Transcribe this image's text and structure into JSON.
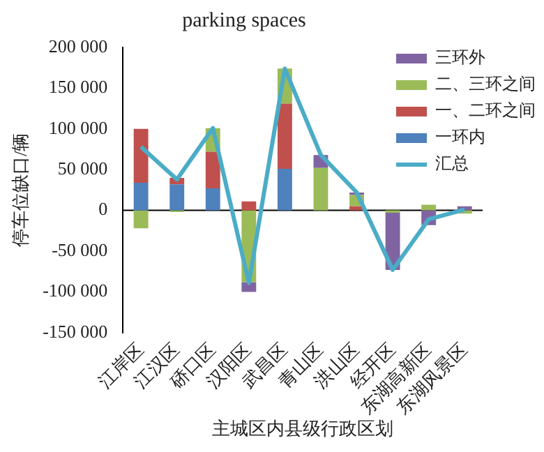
{
  "chart_data": {
    "type": "bar",
    "stacked": true,
    "title": "parking spaces",
    "xlabel": "主城区内县级行政区划",
    "ylabel": "停车位缺口/辆",
    "categories": [
      "江岸区",
      "江汉区",
      "硚口区",
      "汉阳区",
      "武昌区",
      "青山区",
      "洪山区",
      "经开区",
      "东湖高新区",
      "东湖风景区"
    ],
    "series": [
      {
        "name": "一环内",
        "color": "#4f81bd",
        "values": [
          34000,
          32000,
          27000,
          0,
          51000,
          0,
          0,
          0,
          0,
          0
        ]
      },
      {
        "name": "一、二环之间",
        "color": "#c0504d",
        "values": [
          66000,
          8000,
          45000,
          11000,
          80000,
          0,
          5000,
          0,
          0,
          0
        ]
      },
      {
        "name": "二、三环之间",
        "color": "#9bbb59",
        "values": [
          -22000,
          -2000,
          29000,
          -88000,
          43000,
          52000,
          14000,
          -3000,
          7000,
          -4000
        ]
      },
      {
        "name": "三环外",
        "color": "#8064a2",
        "values": [
          0,
          0,
          0,
          -12000,
          0,
          16000,
          3000,
          -70000,
          -18000,
          5000
        ]
      },
      {
        "name": "汇总",
        "type": "line",
        "color": "#4bacc6",
        "values": [
          78000,
          38000,
          101000,
          -89000,
          174000,
          68000,
          22000,
          -73000,
          -11000,
          1000
        ]
      }
    ],
    "ylim": [
      -150000,
      200000
    ],
    "yticks": [
      {
        "value": -150000,
        "label": "-150 000"
      },
      {
        "value": -100000,
        "label": "-100 000"
      },
      {
        "value": -50000,
        "label": "-50 000"
      },
      0,
      {
        "value": 50000,
        "label": "50 000"
      },
      {
        "value": 100000,
        "label": "100 000"
      },
      {
        "value": 150000,
        "label": "150 000"
      },
      {
        "value": 200000,
        "label": "200 000"
      }
    ],
    "ref_lines": [
      {
        "axis": "y",
        "value": 0,
        "color": "#000000"
      }
    ],
    "grid": false,
    "legend": "top right",
    "marker": "none"
  }
}
